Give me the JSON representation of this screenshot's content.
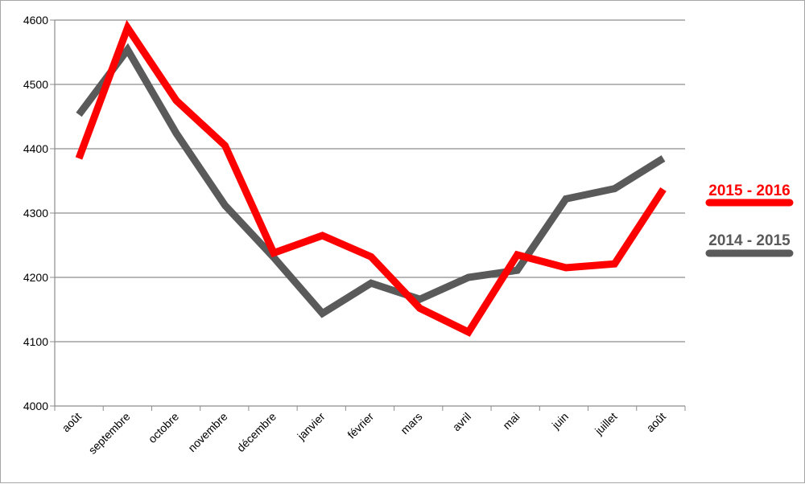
{
  "chart_data": {
    "type": "line",
    "title": "",
    "xlabel": "",
    "ylabel": "",
    "categories": [
      "août",
      "septembre",
      "octobre",
      "novembre",
      "décembre",
      "janvier",
      "février",
      "mars",
      "avril",
      "mai",
      "juin",
      "juillet",
      "août"
    ],
    "ylim": [
      4000,
      4600
    ],
    "yticks": [
      "4000",
      "4100",
      "4200",
      "4300",
      "4400",
      "4500",
      "4600"
    ],
    "grid": "horizontal",
    "legend_position": "right",
    "series": [
      {
        "name": "2015 - 2016",
        "color": "#ff0000",
        "values": [
          4385,
          4588,
          4475,
          4405,
          4238,
          4265,
          4232,
          4152,
          4115,
          4235,
          4215,
          4221,
          4337
        ]
      },
      {
        "name": "2014 - 2015",
        "color": "#5a5a5a",
        "values": [
          4453,
          4554,
          4424,
          4312,
          4231,
          4144,
          4191,
          4166,
          4200,
          4211,
          4322,
          4338,
          4385
        ]
      }
    ]
  }
}
